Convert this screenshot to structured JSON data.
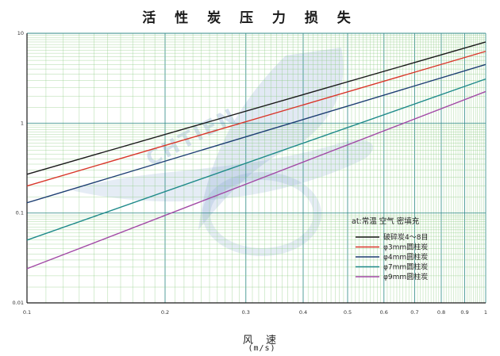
{
  "chart_data": {
    "type": "line",
    "title": "活 性 炭 压 力 损 失",
    "xlabel": "风 速",
    "xunit": "(m/s)",
    "ylabel": "",
    "x_scale": "log",
    "y_scale": "log",
    "xlim": [
      0.1,
      1.0
    ],
    "ylim": [
      0.01,
      10
    ],
    "x_ticks": [
      "0.1",
      "0.2",
      "0.3",
      "0.4",
      "0.5",
      "0.6",
      "0.7",
      "0.8",
      "0.9",
      "1"
    ],
    "y_ticks": [
      "10",
      "1",
      "0.1",
      "0.01"
    ],
    "grid": true,
    "watermark": "CHTIEN",
    "legend_title": "at:常温 空气 密填充",
    "legend_position": "center-right",
    "series": [
      {
        "name": "破碎炭4～8目",
        "color": "#1a1a1a",
        "x": [
          0.1,
          1.0
        ],
        "y": [
          0.27,
          8.0
        ]
      },
      {
        "name": "φ3mm圆柱炭",
        "color": "#d9362a",
        "x": [
          0.1,
          1.0
        ],
        "y": [
          0.2,
          6.3
        ]
      },
      {
        "name": "φ4mm圆柱炭",
        "color": "#1e3f73",
        "x": [
          0.1,
          1.0
        ],
        "y": [
          0.13,
          4.5
        ]
      },
      {
        "name": "φ7mm圆柱炭",
        "color": "#1f8a8a",
        "x": [
          0.1,
          1.0
        ],
        "y": [
          0.05,
          3.1
        ]
      },
      {
        "name": "φ9mm圆柱炭",
        "color": "#a24aa6",
        "x": [
          0.1,
          1.0
        ],
        "y": [
          0.024,
          2.25
        ]
      }
    ]
  },
  "colors": {
    "grid_major": "#2f8a85",
    "grid_minor": "#86c87a",
    "axis": "#1a1a1a",
    "watermark": "#5d86c0"
  }
}
